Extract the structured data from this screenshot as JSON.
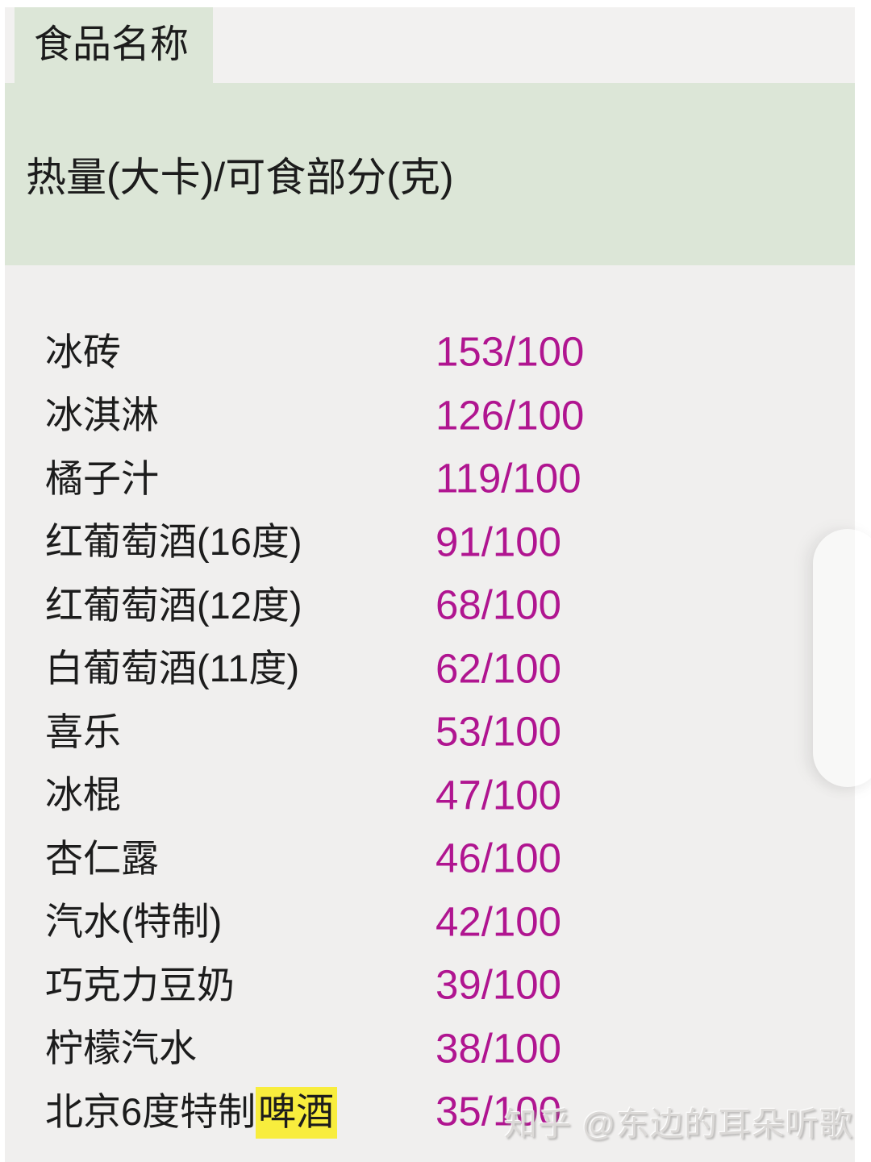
{
  "chart_data": {
    "type": "table",
    "title": "",
    "columns": [
      "食品名称",
      "热量(大卡)/可食部分(克)"
    ],
    "rows": [
      [
        "冰砖",
        "153/100"
      ],
      [
        "冰淇淋",
        "126/100"
      ],
      [
        "橘子汁",
        "119/100"
      ],
      [
        "红葡萄酒(16度)",
        "91/100"
      ],
      [
        "红葡萄酒(12度)",
        "68/100"
      ],
      [
        "白葡萄酒(11度)",
        "62/100"
      ],
      [
        "喜乐",
        "53/100"
      ],
      [
        "冰棍",
        "47/100"
      ],
      [
        "杏仁露",
        "46/100"
      ],
      [
        "汽水(特制)",
        "42/100"
      ],
      [
        "巧克力豆奶",
        "39/100"
      ],
      [
        "柠檬汽水",
        "38/100"
      ],
      [
        "北京6度特制啤酒",
        "35/100"
      ]
    ]
  },
  "table": {
    "col1_header": "食品名称",
    "col2_header": "热量(大卡)/可食部分(克)",
    "rows": [
      {
        "name": "冰砖",
        "highlight": "",
        "value": "153/100"
      },
      {
        "name": "冰淇淋",
        "highlight": "",
        "value": "126/100"
      },
      {
        "name": "橘子汁",
        "highlight": "",
        "value": "119/100"
      },
      {
        "name": "红葡萄酒(16度)",
        "highlight": "",
        "value": "91/100"
      },
      {
        "name": "红葡萄酒(12度)",
        "highlight": "",
        "value": "68/100"
      },
      {
        "name": "白葡萄酒(11度)",
        "highlight": "",
        "value": "62/100"
      },
      {
        "name": "喜乐",
        "highlight": "",
        "value": "53/100"
      },
      {
        "name": "冰棍",
        "highlight": "",
        "value": "47/100"
      },
      {
        "name": "杏仁露",
        "highlight": "",
        "value": "46/100"
      },
      {
        "name": "汽水(特制)",
        "highlight": "",
        "value": "42/100"
      },
      {
        "name": "巧克力豆奶",
        "highlight": "",
        "value": "39/100"
      },
      {
        "name": "柠檬汽水",
        "highlight": "",
        "value": "38/100"
      },
      {
        "name": "北京6度特制",
        "highlight": "啤酒",
        "value": "35/100"
      }
    ]
  },
  "watermark": {
    "text": "知乎 @东边的耳朵听歌"
  },
  "colors": {
    "header_green": "#dce6d7",
    "header_gray": "#f2f1f0",
    "list_bg": "#f0efee",
    "value_magenta": "#b01590",
    "text_black": "#1c1c1c",
    "highlight_yellow": "#f8ed3d"
  }
}
